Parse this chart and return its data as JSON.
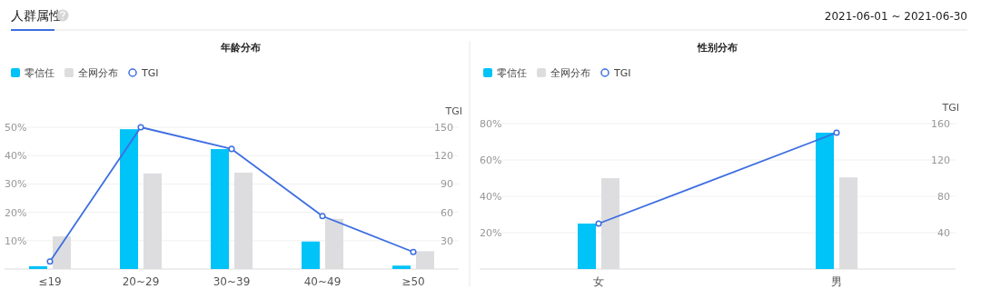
{
  "chart_data": [
    {
      "type": "other",
      "title": "人群属性",
      "annotations": [
        "2021-06-01 ~ 2021-06-30"
      ]
    },
    {
      "type": "bar",
      "title": "年龄分布",
      "categories": [
        "≤19",
        "20~29",
        "30~39",
        "40~49",
        "≥50"
      ],
      "series": [
        {
          "name": "零信任",
          "color": "#00c3f8",
          "values": [
            1,
            49.3,
            42.3,
            9.7,
            1.2
          ]
        },
        {
          "name": "全网分布",
          "color": "#dddddf",
          "values": [
            11.5,
            33.7,
            34,
            17.7,
            6.3
          ]
        },
        {
          "name": "TGI",
          "type": "line",
          "axis": "y2",
          "marker": "circle",
          "color": "#3d6ee0",
          "values": [
            8,
            150,
            127,
            56,
            18
          ]
        }
      ],
      "ylim": [
        0,
        50
      ],
      "yticks": [
        {
          "value": 0,
          "label": null
        },
        {
          "value": 10,
          "label": "10%"
        },
        {
          "value": 20,
          "label": "20%"
        },
        {
          "value": 30,
          "label": "30%"
        },
        {
          "value": 40,
          "label": "40%"
        },
        {
          "value": 50,
          "label": "50%"
        }
      ],
      "y2lim": [
        0,
        150
      ],
      "y2ticks": [
        30,
        60,
        90,
        120,
        150
      ],
      "y2label": "TGI",
      "grid": "y",
      "legend": "top left"
    },
    {
      "type": "bar",
      "title": "性别分布",
      "categories": [
        "女",
        "男"
      ],
      "series": [
        {
          "name": "零信任",
          "color": "#00c3f8",
          "values": [
            25,
            75
          ]
        },
        {
          "name": "全网分布",
          "color": "#dddddf",
          "values": [
            50,
            50.4
          ]
        },
        {
          "name": "TGI",
          "type": "line",
          "axis": "y2",
          "marker": "circle",
          "color": "#3d6ee0",
          "values": [
            50,
            150
          ]
        }
      ],
      "ylim": [
        0,
        80
      ],
      "yticks": [
        {
          "value": 0,
          "label": null
        },
        {
          "value": 20,
          "label": "20%"
        },
        {
          "value": 40,
          "label": "40%"
        },
        {
          "value": 60,
          "label": "60%"
        },
        {
          "value": 80,
          "label": "80%"
        }
      ],
      "y2lim": [
        0,
        160
      ],
      "y2ticks": [
        40,
        80,
        120,
        160
      ],
      "y2label": "TGI",
      "grid": "y",
      "legend": "top left"
    }
  ]
}
